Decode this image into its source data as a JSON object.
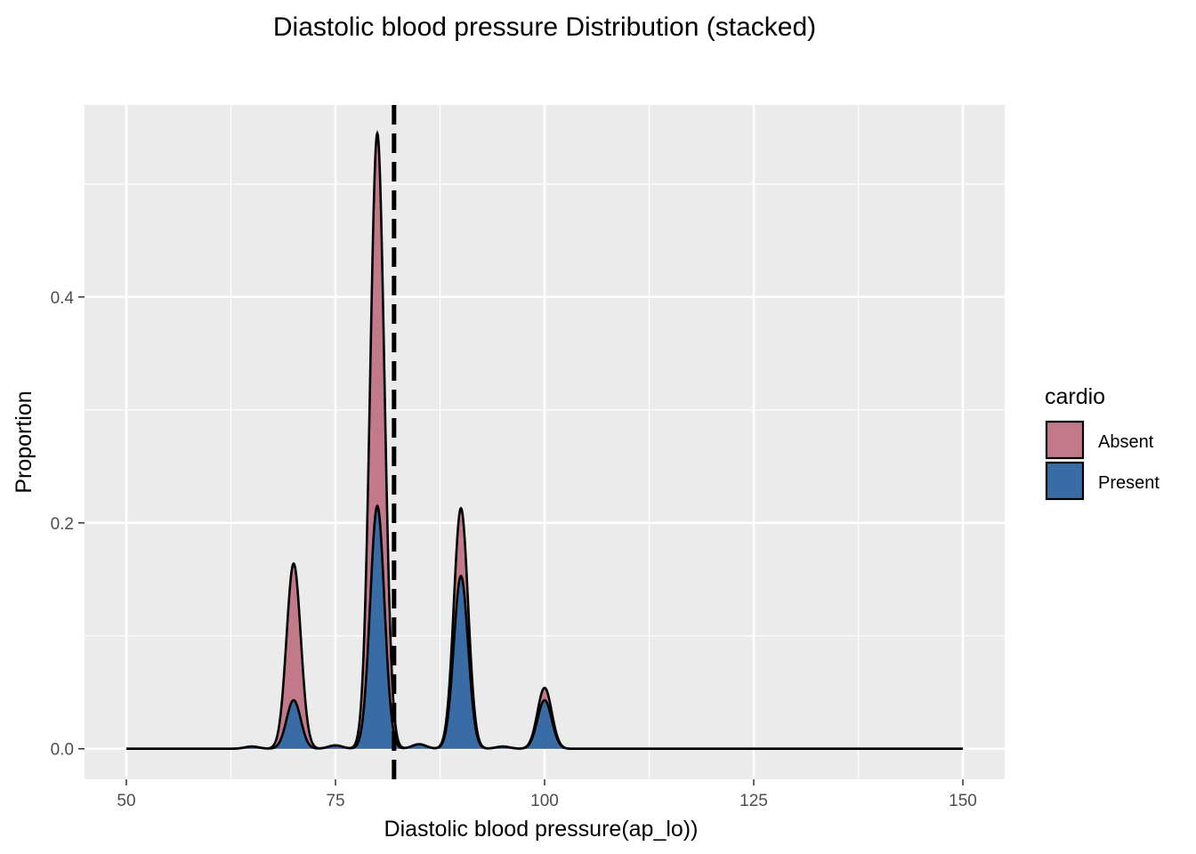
{
  "chart_data": {
    "type": "area",
    "title": "Diastolic blood pressure Distribution (stacked)",
    "xlabel": "Diastolic blood pressure(ap_lo))",
    "ylabel": "Proportion",
    "xlim": [
      45,
      155
    ],
    "ylim": [
      -0.027,
      0.57
    ],
    "x_ticks": [
      50,
      75,
      100,
      125,
      150
    ],
    "x_tick_labels": [
      "50",
      "75",
      "100",
      "125",
      "150"
    ],
    "y_ticks": [
      0.0,
      0.2,
      0.4
    ],
    "y_tick_labels": [
      "0.0",
      "0.2",
      "0.4"
    ],
    "grid": true,
    "legend": {
      "title": "cardio",
      "position": "right",
      "entries": [
        {
          "label": "Absent",
          "color": "#C27A8A"
        },
        {
          "label": "Present",
          "color": "#396BA5"
        }
      ]
    },
    "stacked": true,
    "series": [
      {
        "name": "Present",
        "color": "#396BA5",
        "peaks": [
          {
            "x": 65,
            "y": 0.002
          },
          {
            "x": 70,
            "y": 0.043
          },
          {
            "x": 75,
            "y": 0.003
          },
          {
            "x": 80,
            "y": 0.215
          },
          {
            "x": 85,
            "y": 0.004
          },
          {
            "x": 90,
            "y": 0.153
          },
          {
            "x": 95,
            "y": 0.002
          },
          {
            "x": 100,
            "y": 0.043
          }
        ]
      },
      {
        "name": "Absent",
        "color": "#C27A8A",
        "peaks": [
          {
            "x": 70,
            "y": 0.121
          },
          {
            "x": 80,
            "y": 0.33
          },
          {
            "x": 90,
            "y": 0.06
          },
          {
            "x": 100,
            "y": 0.011
          }
        ]
      }
    ],
    "stacked_total_peaks": [
      {
        "x": 70,
        "y": 0.164
      },
      {
        "x": 80,
        "y": 0.545
      },
      {
        "x": 90,
        "y": 0.213
      },
      {
        "x": 100,
        "y": 0.054
      }
    ],
    "reference_line": {
      "x": 82,
      "style": "dashed"
    },
    "x_range": [
      50,
      150
    ]
  }
}
